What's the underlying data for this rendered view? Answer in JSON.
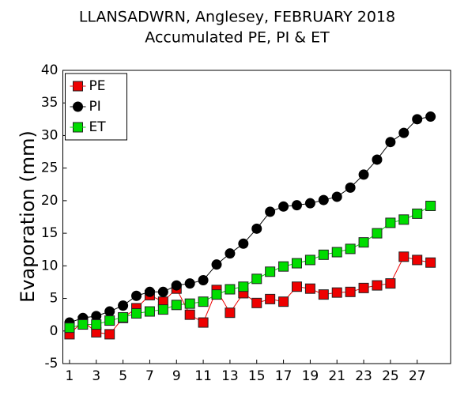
{
  "chart_data": {
    "type": "line",
    "title": "LLANSADWRN, Anglesey, FEBRUARY 2018",
    "subtitle": "Accumulated PE,  PI & ET",
    "y_label": "Evaporation (mm)",
    "x": [
      1,
      2,
      3,
      4,
      5,
      6,
      7,
      8,
      9,
      10,
      11,
      12,
      13,
      14,
      15,
      16,
      17,
      18,
      19,
      20,
      21,
      22,
      23,
      24,
      25,
      26,
      27,
      28
    ],
    "series": [
      {
        "name": "PE",
        "color": "#ee0000",
        "marker": "square",
        "values": [
          -0.5,
          1.5,
          -0.2,
          -0.5,
          2.0,
          3.5,
          5.5,
          4.5,
          6.5,
          2.5,
          1.3,
          6.3,
          2.8,
          5.8,
          4.3,
          4.9,
          4.5,
          6.8,
          6.5,
          5.6,
          5.9,
          6.0,
          6.6,
          7.0,
          7.3,
          11.4,
          10.9,
          10.5
        ]
      },
      {
        "name": "PI",
        "color": "#000000",
        "marker": "circle",
        "values": [
          1.3,
          2.0,
          2.3,
          3.0,
          3.9,
          5.4,
          6.0,
          6.0,
          7.0,
          7.3,
          7.8,
          10.2,
          11.9,
          13.4,
          15.7,
          18.3,
          19.1,
          19.3,
          19.6,
          20.1,
          20.6,
          22.0,
          24.0,
          26.3,
          29.0,
          30.4,
          32.5,
          32.9
        ]
      },
      {
        "name": "ET",
        "color": "#00dd00",
        "marker": "square",
        "values": [
          0.5,
          1.0,
          1.0,
          1.6,
          2.1,
          2.7,
          3.0,
          3.3,
          4.0,
          4.2,
          4.5,
          5.6,
          6.4,
          6.8,
          8.0,
          9.1,
          9.9,
          10.4,
          10.9,
          11.7,
          12.1,
          12.6,
          13.6,
          15.0,
          16.6,
          17.1,
          18.0,
          19.2
        ]
      }
    ],
    "xlim": [
      0.5,
      29.5
    ],
    "xticks": [
      1,
      3,
      5,
      7,
      9,
      11,
      13,
      15,
      17,
      19,
      21,
      23,
      25,
      27
    ],
    "ylim": [
      -5,
      40
    ],
    "yticks": [
      -5,
      0,
      5,
      10,
      15,
      20,
      25,
      30,
      35,
      40
    ],
    "grid": false,
    "legend": "top-left"
  }
}
